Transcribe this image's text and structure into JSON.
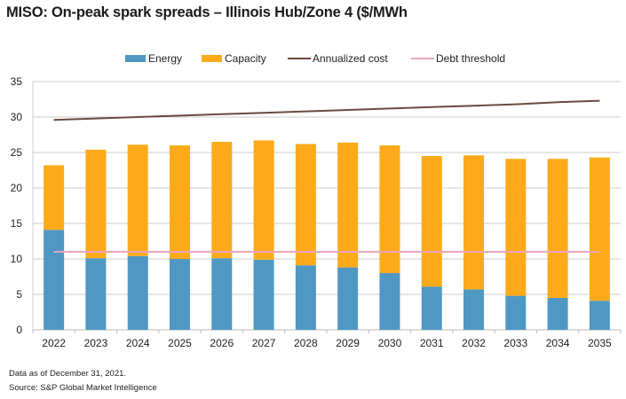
{
  "title": "MISO: On-peak spark spreads – Illinois Hub/Zone 4 ($/MWh",
  "footer": {
    "note": "Data as of December 31, 2021.",
    "source": "Source: S&P Global Market Intelligence"
  },
  "colors": {
    "energy": "#4f98c3",
    "capacity": "#fdaa1a",
    "annualized_cost": "#6b4a3e",
    "debt_threshold": "#e8a6be",
    "grid": "#cccccc"
  },
  "chart_data": {
    "type": "bar",
    "stacked": true,
    "title": "MISO: On-peak spark spreads – Illinois Hub/Zone 4 ($/MWh",
    "xlabel": "",
    "ylabel": "",
    "ylim": [
      0,
      35
    ],
    "yticks": [
      0,
      5,
      10,
      15,
      20,
      25,
      30,
      35
    ],
    "grid": true,
    "legend_position": "top-center",
    "categories": [
      "2022",
      "2023",
      "2024",
      "2025",
      "2026",
      "2027",
      "2028",
      "2029",
      "2030",
      "2031",
      "2032",
      "2033",
      "2034",
      "2035"
    ],
    "series": [
      {
        "name": "Energy",
        "type": "bar",
        "values": [
          14.1,
          10.1,
          10.4,
          10.0,
          10.1,
          9.9,
          9.1,
          8.8,
          8.0,
          6.1,
          5.7,
          4.8,
          4.5,
          4.1
        ]
      },
      {
        "name": "Capacity",
        "type": "bar",
        "values": [
          9.1,
          15.3,
          15.7,
          16.0,
          16.4,
          16.8,
          17.1,
          17.6,
          18.0,
          18.4,
          18.9,
          19.3,
          19.6,
          20.2
        ]
      },
      {
        "name": "Annualized cost",
        "type": "line",
        "values": [
          29.6,
          29.8,
          30.0,
          30.2,
          30.4,
          30.6,
          30.8,
          31.0,
          31.2,
          31.4,
          31.6,
          31.8,
          32.1,
          32.3
        ]
      },
      {
        "name": "Debt threshold",
        "type": "line",
        "values": [
          11.0,
          11.0,
          11.0,
          11.0,
          11.0,
          11.0,
          11.0,
          11.0,
          11.0,
          11.0,
          11.0,
          11.0,
          11.0,
          11.0
        ]
      }
    ]
  }
}
